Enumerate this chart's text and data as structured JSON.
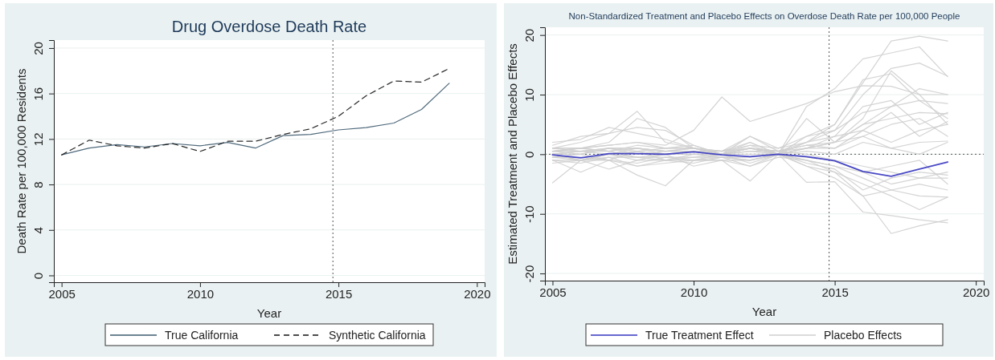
{
  "chart_data": [
    {
      "type": "line",
      "title": "Drug Overdose Death Rate",
      "xlabel": "Year",
      "ylabel": "Death Rate per 100,000 Residents",
      "x": [
        2005,
        2006,
        2007,
        2008,
        2009,
        2010,
        2011,
        2012,
        2013,
        2014,
        2015,
        2016,
        2017,
        2018,
        2019
      ],
      "xlim": [
        2004.72,
        2020.28
      ],
      "xticks": [
        2005,
        2010,
        2015,
        2020
      ],
      "ylim": [
        -0.6,
        20.7
      ],
      "yticks": [
        0,
        4,
        8,
        12,
        16,
        20
      ],
      "grid": "y",
      "legend": "bottom",
      "marker": "none",
      "ref_lines": [
        {
          "axis": "x",
          "value": 2014.8,
          "line_style": "dotted",
          "color": "#555555"
        }
      ],
      "series": [
        {
          "name": "True California",
          "color": "#3d5a6e",
          "line_style": "solid",
          "values": [
            10.6,
            11.2,
            11.5,
            11.3,
            11.6,
            11.4,
            11.7,
            11.2,
            12.3,
            12.4,
            12.8,
            13.0,
            13.4,
            14.6,
            16.9
          ]
        },
        {
          "name": "Synthetic California",
          "color": "#111111",
          "line_style": "dashed",
          "values": [
            10.6,
            11.9,
            11.4,
            11.2,
            11.6,
            10.9,
            11.8,
            11.8,
            12.4,
            12.9,
            14.0,
            15.8,
            17.1,
            17.0,
            18.2
          ]
        }
      ]
    },
    {
      "type": "line",
      "title": "Non-Standardized Treatment and Placebo Effects on Overdose Death Rate per 100,000 People",
      "xlabel": "Year",
      "ylabel": "Estimated Treatment and Placebo Effects",
      "x": [
        2005,
        2006,
        2007,
        2008,
        2009,
        2010,
        2011,
        2012,
        2013,
        2014,
        2015,
        2016,
        2017,
        2018,
        2019
      ],
      "xlim": [
        2004.73,
        2020.28
      ],
      "xticks": [
        2005,
        2010,
        2015,
        2020
      ],
      "ylim": [
        -21.2,
        21.3
      ],
      "yticks": [
        -20,
        -10,
        0,
        10,
        20
      ],
      "grid": "y",
      "legend": "bottom",
      "marker": "none",
      "ref_lines": [
        {
          "axis": "x",
          "value": 2014.8,
          "line_style": "dotted",
          "color": "#555555"
        },
        {
          "axis": "y",
          "value": 0,
          "line_style": "dotted",
          "color": "#555555"
        }
      ],
      "series": [
        {
          "name": "Placebo Effects",
          "color": "#cfcfcf",
          "line_style": "solid",
          "values": [
            0.5,
            1,
            1.5,
            2,
            1.5,
            4,
            9.6,
            5.5,
            7,
            8.5,
            10.5,
            11.5,
            11.4,
            10,
            10
          ]
        },
        {
          "color": "#cfcfcf",
          "line_style": "solid",
          "values": [
            -4.8,
            -1,
            0,
            0.5,
            0,
            0.5,
            0,
            0.5,
            0,
            2,
            5,
            12,
            19,
            19.8,
            19
          ]
        },
        {
          "color": "#cfcfcf",
          "line_style": "solid",
          "values": [
            1,
            2,
            3.5,
            7.2,
            2,
            1,
            0,
            1,
            0,
            1,
            2,
            6,
            14,
            10,
            5
          ]
        },
        {
          "color": "#cfcfcf",
          "line_style": "solid",
          "values": [
            0.5,
            1,
            2,
            6,
            4.5,
            1,
            0,
            1,
            0,
            8,
            11,
            16,
            17,
            18,
            13
          ]
        },
        {
          "color": "#cfcfcf",
          "line_style": "solid",
          "values": [
            1.5,
            3,
            3.5,
            4.5,
            4,
            1.5,
            0,
            3,
            1,
            3,
            4,
            10,
            14.4,
            15.3,
            13.1
          ]
        },
        {
          "color": "#cfcfcf",
          "line_style": "solid",
          "values": [
            2,
            2.5,
            4.5,
            3.5,
            2.5,
            1,
            0,
            1.5,
            0,
            6,
            2,
            5,
            8,
            11,
            10
          ]
        },
        {
          "color": "#cfcfcf",
          "line_style": "solid",
          "values": [
            -1,
            -3,
            -1,
            -3.5,
            -5.3,
            -1,
            -1,
            -4.5,
            0,
            -4.7,
            -4.6,
            -9.7,
            -10.3,
            -11,
            -11.5
          ]
        },
        {
          "color": "#cfcfcf",
          "line_style": "solid",
          "values": [
            0,
            -1,
            -2.5,
            -1,
            0,
            -2,
            -1,
            -2,
            0,
            -2,
            -3,
            -7,
            -13.3,
            -12,
            -11
          ]
        },
        {
          "color": "#cfcfcf",
          "line_style": "solid",
          "values": [
            1,
            0.5,
            1,
            0.5,
            1,
            1.5,
            0,
            2,
            0,
            1,
            3,
            8,
            9,
            5,
            7
          ]
        },
        {
          "color": "#cfcfcf",
          "line_style": "solid",
          "values": [
            -1,
            -1,
            0,
            -1,
            -1,
            0,
            -0.5,
            -1,
            0,
            -1,
            -3,
            -5,
            -7,
            -9.3,
            -7.2
          ]
        },
        {
          "color": "#cfcfcf",
          "line_style": "solid",
          "values": [
            0.5,
            0,
            1,
            1,
            0.5,
            1,
            0,
            1,
            0.5,
            1.5,
            1,
            4,
            7,
            3,
            5.5
          ]
        },
        {
          "color": "#cfcfcf",
          "line_style": "solid",
          "values": [
            -0.5,
            -0.5,
            -1,
            -1.5,
            -0.5,
            -1,
            0,
            -1.5,
            0,
            -1,
            -2,
            -4,
            -6,
            -5,
            -6
          ]
        },
        {
          "color": "#cfcfcf",
          "line_style": "solid",
          "values": [
            0,
            0.5,
            0,
            1,
            0,
            0.5,
            0,
            1,
            0.5,
            1,
            1,
            3,
            5,
            6,
            3
          ]
        },
        {
          "color": "#cfcfcf",
          "line_style": "solid",
          "values": [
            -1,
            -1.5,
            -0.5,
            -2,
            -1,
            -1.5,
            -0.5,
            -0.5,
            0,
            -1.5,
            -2.5,
            -6,
            -4,
            -3,
            -3.5
          ]
        },
        {
          "color": "#cfcfcf",
          "line_style": "solid",
          "values": [
            1,
            1,
            0.5,
            1.5,
            1,
            1,
            0.5,
            3,
            0.5,
            2,
            4,
            7,
            8,
            9,
            8.5
          ]
        },
        {
          "color": "#cfcfcf",
          "line_style": "solid",
          "values": [
            0,
            -1,
            -0.5,
            -0.5,
            -1,
            -1,
            -1,
            -1,
            0,
            -2,
            -4,
            -7,
            -6,
            -7,
            -7.2
          ]
        },
        {
          "color": "#cfcfcf",
          "line_style": "solid",
          "values": [
            0.5,
            0.5,
            1,
            0,
            0.5,
            0.5,
            0.5,
            2,
            0,
            3,
            5,
            12.5,
            13.5,
            9,
            6
          ]
        },
        {
          "color": "#cfcfcf",
          "line_style": "solid",
          "values": [
            -0.5,
            0,
            -1,
            0.5,
            -1,
            -0.5,
            0,
            0,
            0,
            0.5,
            0,
            2,
            1,
            0,
            2
          ]
        },
        {
          "color": "#cfcfcf",
          "line_style": "solid",
          "values": [
            0,
            0.5,
            0.5,
            -0.5,
            0,
            0,
            0,
            0.5,
            0.5,
            0,
            -1,
            -2,
            -3,
            -4,
            -4
          ]
        },
        {
          "color": "#cfcfcf",
          "line_style": "solid",
          "values": [
            1,
            1,
            1.5,
            2,
            1,
            1,
            0.5,
            1.5,
            1,
            2,
            3,
            4,
            2,
            4,
            5
          ]
        },
        {
          "color": "#cfcfcf",
          "line_style": "solid",
          "values": [
            -1.5,
            -1,
            -1,
            -2,
            -1.5,
            -1,
            -0.5,
            -2,
            -0.5,
            -1,
            -2,
            -3,
            -5,
            -4,
            -3
          ]
        },
        {
          "color": "#cfcfcf",
          "line_style": "solid",
          "values": [
            0.5,
            1,
            0.5,
            1,
            0.5,
            0.5,
            0,
            1,
            0.5,
            1.5,
            2,
            5,
            6,
            7,
            6.8
          ]
        },
        {
          "color": "#cfcfcf",
          "line_style": "solid",
          "values": [
            -0.5,
            -1,
            0,
            -0.5,
            -0.5,
            -0.5,
            -0.5,
            -1,
            0,
            -0.5,
            -1,
            -3,
            -2,
            -1,
            -5
          ]
        },
        {
          "color": "#cfcfcf",
          "line_style": "solid",
          "values": [
            0,
            0,
            1,
            1,
            0.5,
            1,
            0.5,
            1,
            0,
            1,
            2,
            3,
            1,
            2,
            2.2
          ]
        },
        {
          "name": "True Treatment Effect",
          "color": "#3535c0",
          "line_style": "solid",
          "values": [
            -0.1,
            -0.6,
            0.1,
            0.1,
            0,
            0.4,
            -0.1,
            -0.4,
            0,
            -0.4,
            -1.1,
            -2.9,
            -3.7,
            -2.5,
            -1.3
          ]
        }
      ]
    }
  ]
}
